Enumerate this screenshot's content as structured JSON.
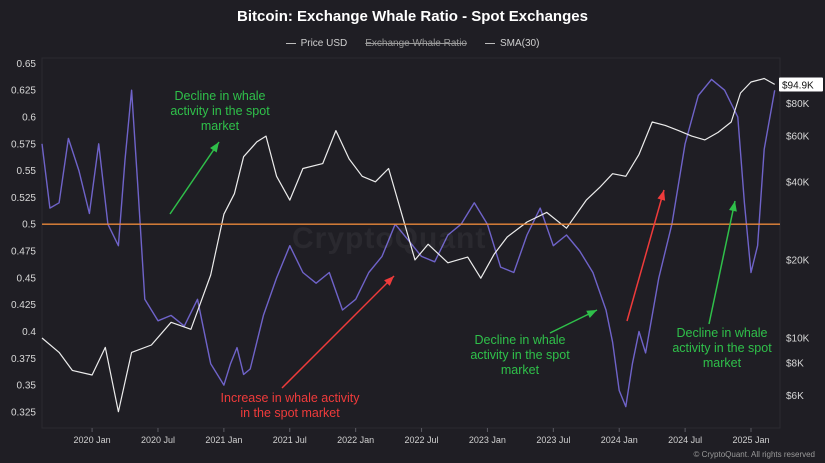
{
  "chart_data": {
    "type": "line",
    "title": "Bitcoin: Exchange Whale Ratio - Spot Exchanges",
    "legend": [
      "Price USD",
      "Exchange Whale Ratio",
      "SMA(30)"
    ],
    "legend_placement": "top",
    "x_ticks": [
      "2020 Jan",
      "2020 Jul",
      "2021 Jan",
      "2021 Jul",
      "2022 Jan",
      "2022 Jul",
      "2023 Jan",
      "2023 Jul",
      "2024 Jan",
      "2024 Jul",
      "2025 Jan"
    ],
    "xlim": [
      2019.62,
      2025.22
    ],
    "left_axis": {
      "label": "",
      "ylim": [
        0.31,
        0.655
      ],
      "ticks": [
        0.65,
        0.625,
        0.6,
        0.575,
        0.55,
        0.525,
        0.5,
        0.475,
        0.45,
        0.425,
        0.4,
        0.375,
        0.35,
        0.325
      ],
      "tick_labels": [
        "0.65",
        "0.625",
        "0.6",
        "0.575",
        "0.55",
        "0.525",
        "0.5",
        "0.475",
        "0.45",
        "0.425",
        "0.4",
        "0.375",
        "0.35",
        "0.325"
      ]
    },
    "right_axis": {
      "scale": "log",
      "ylim": [
        4500,
        120000
      ],
      "ticks": [
        80000,
        60000,
        40000,
        20000,
        10000,
        8000,
        6000
      ],
      "tick_labels": [
        "$80K",
        "$60K",
        "$40K",
        "$20K",
        "$10K",
        "$8K",
        "$6K"
      ],
      "current_value": 94900,
      "current_label": "$94.9K"
    },
    "reference_line": {
      "value": 0.5,
      "color": "#e8873a"
    },
    "series": [
      {
        "name": "Price USD",
        "color": "#ececec",
        "x": [
          2019.62,
          2019.75,
          2019.85,
          2020.0,
          2020.1,
          2020.2,
          2020.3,
          2020.45,
          2020.6,
          2020.75,
          2020.9,
          2021.0,
          2021.08,
          2021.15,
          2021.25,
          2021.32,
          2021.4,
          2021.5,
          2021.6,
          2021.75,
          2021.85,
          2021.95,
          2022.05,
          2022.15,
          2022.25,
          2022.35,
          2022.45,
          2022.55,
          2022.7,
          2022.85,
          2022.95,
          2023.05,
          2023.15,
          2023.3,
          2023.45,
          2023.6,
          2023.75,
          2023.85,
          2023.95,
          2024.05,
          2024.15,
          2024.25,
          2024.35,
          2024.45,
          2024.55,
          2024.65,
          2024.75,
          2024.85,
          2024.92,
          2025.0,
          2025.1,
          2025.18
        ],
        "values": [
          10000,
          8800,
          7500,
          7200,
          9200,
          5200,
          8800,
          9400,
          11500,
          10800,
          17500,
          30000,
          36000,
          50000,
          57000,
          60000,
          42000,
          34000,
          45000,
          47000,
          63000,
          49000,
          42000,
          40000,
          45000,
          30000,
          20000,
          23000,
          19500,
          20500,
          17000,
          21000,
          24500,
          28000,
          30500,
          26500,
          34000,
          38000,
          43000,
          42000,
          51000,
          68000,
          66000,
          63000,
          60000,
          58000,
          62000,
          68000,
          88000,
          97000,
          100000,
          94900
        ]
      },
      {
        "name": "Exchange Whale Ratio",
        "color": "#6f63c9",
        "x": [
          2019.62,
          2019.68,
          2019.75,
          2019.82,
          2019.9,
          2019.98,
          2020.05,
          2020.12,
          2020.2,
          2020.25,
          2020.3,
          2020.35,
          2020.4,
          2020.5,
          2020.6,
          2020.7,
          2020.8,
          2020.9,
          2021.0,
          2021.05,
          2021.1,
          2021.15,
          2021.2,
          2021.3,
          2021.4,
          2021.5,
          2021.6,
          2021.7,
          2021.8,
          2021.9,
          2022.0,
          2022.1,
          2022.2,
          2022.3,
          2022.4,
          2022.5,
          2022.6,
          2022.7,
          2022.8,
          2022.9,
          2023.0,
          2023.1,
          2023.2,
          2023.3,
          2023.4,
          2023.5,
          2023.6,
          2023.7,
          2023.8,
          2023.9,
          2023.95,
          2024.0,
          2024.05,
          2024.1,
          2024.15,
          2024.2,
          2024.3,
          2024.4,
          2024.5,
          2024.6,
          2024.7,
          2024.8,
          2024.9,
          2024.95,
          2025.0,
          2025.05,
          2025.1,
          2025.18
        ],
        "values": [
          0.575,
          0.515,
          0.52,
          0.58,
          0.55,
          0.51,
          0.575,
          0.5,
          0.48,
          0.56,
          0.625,
          0.53,
          0.43,
          0.41,
          0.415,
          0.405,
          0.43,
          0.37,
          0.35,
          0.37,
          0.385,
          0.36,
          0.365,
          0.415,
          0.45,
          0.48,
          0.455,
          0.445,
          0.455,
          0.42,
          0.43,
          0.455,
          0.47,
          0.5,
          0.485,
          0.47,
          0.465,
          0.49,
          0.5,
          0.52,
          0.5,
          0.46,
          0.455,
          0.49,
          0.515,
          0.48,
          0.49,
          0.475,
          0.455,
          0.42,
          0.39,
          0.345,
          0.33,
          0.37,
          0.4,
          0.38,
          0.45,
          0.5,
          0.575,
          0.62,
          0.635,
          0.625,
          0.6,
          0.52,
          0.455,
          0.48,
          0.57,
          0.625
        ]
      }
    ],
    "annotations": [
      {
        "text": "Decline in whale activity in the spot market",
        "color": "green",
        "arrow": "up"
      },
      {
        "text": "Increase in whale activity in the spot market",
        "color": "red",
        "arrow": "up"
      },
      {
        "text": "Decline in whale activity in the spot market",
        "color": "green",
        "arrow": "up"
      },
      {
        "text": "Decline in whale activity in the spot market",
        "color": "green",
        "arrow": "up"
      }
    ]
  },
  "header": {
    "title": "Bitcoin: Exchange Whale Ratio - Spot Exchanges",
    "legend": {
      "price": "Price USD",
      "ratio": "Exchange Whale Ratio",
      "sma": "SMA(30)"
    }
  },
  "annotations": {
    "a1": {
      "l1": "Decline in whale",
      "l2": "activity in the spot",
      "l3": "market"
    },
    "a2": {
      "l1": "Increase in whale activity",
      "l2": "in the spot market"
    },
    "a3": {
      "l1": "Decline in whale",
      "l2": "activity in the spot",
      "l3": "market"
    },
    "a4": {
      "l1": "Decline in whale",
      "l2": "activity in the spot",
      "l3": "market"
    }
  },
  "watermark": "CryptoQuant",
  "footer": "© CryptoQuant. All rights reserved",
  "colors": {
    "background": "#1f1e24",
    "price": "#ececec",
    "ratio": "#6f63c9",
    "reference": "#e8873a",
    "green": "#2fc04a",
    "red": "#ef3b3b"
  }
}
